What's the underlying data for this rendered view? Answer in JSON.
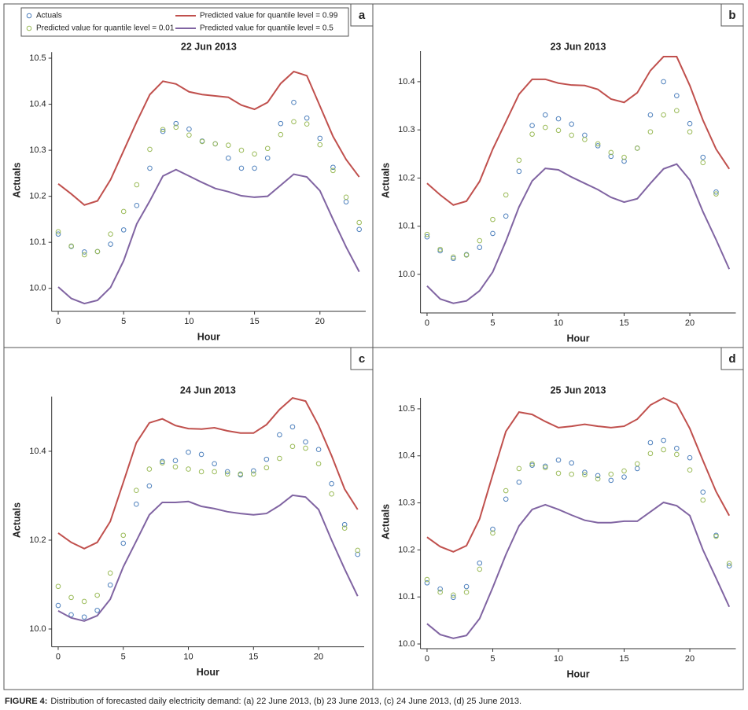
{
  "chart_data": [
    {
      "type": "line",
      "title": "22 Jun 2013",
      "panel_label": "a",
      "xlabel": "Hour",
      "ylabel": "Actuals",
      "legend": "top",
      "x": [
        0,
        1,
        2,
        3,
        4,
        5,
        6,
        7,
        8,
        9,
        10,
        11,
        12,
        13,
        14,
        15,
        16,
        17,
        18,
        19,
        20,
        21,
        22,
        23
      ],
      "xlim": [
        -0.5,
        23.5
      ],
      "xticks": [
        0,
        5,
        10,
        15,
        20
      ],
      "ylim": [
        9.95,
        10.52
      ],
      "yticks": [
        {
          "value": 10,
          "label": "10.0"
        },
        10.1,
        10.2,
        10.3,
        10.4,
        10.5
      ],
      "series": [
        {
          "name": "Actuals",
          "type": "scatter",
          "color": "#4f81bd",
          "values": [
            10.118,
            10.091,
            10.079,
            10.08,
            10.096,
            10.127,
            10.18,
            10.261,
            10.341,
            10.358,
            10.346,
            10.32,
            10.314,
            10.283,
            10.261,
            10.261,
            10.283,
            10.358,
            10.404,
            10.37,
            10.326,
            10.263,
            10.188,
            10.128
          ]
        },
        {
          "name": "Predicted value for quantile level = 0.01",
          "type": "scatter",
          "color": "#9bbb59",
          "values": [
            10.123,
            10.092,
            10.073,
            10.08,
            10.118,
            10.167,
            10.225,
            10.302,
            10.345,
            10.35,
            10.333,
            10.319,
            10.314,
            10.311,
            10.3,
            10.292,
            10.304,
            10.334,
            10.362,
            10.357,
            10.312,
            10.256,
            10.198,
            10.143
          ]
        },
        {
          "name": "Predicted value for quantile level = 0.99",
          "type": "line",
          "color": "#c0504d",
          "values": [
            10.227,
            10.205,
            10.181,
            10.19,
            10.236,
            10.299,
            10.362,
            10.421,
            10.45,
            10.444,
            10.427,
            10.421,
            10.418,
            10.415,
            10.398,
            10.389,
            10.404,
            10.445,
            10.471,
            10.462,
            10.396,
            10.33,
            10.28,
            10.242
          ]
        },
        {
          "name": "Predicted value for quantile level = 0.5",
          "type": "line",
          "color": "#8064a2",
          "values": [
            10.003,
            9.978,
            9.967,
            9.974,
            10.002,
            10.06,
            10.14,
            10.19,
            10.244,
            10.258,
            10.244,
            10.23,
            10.217,
            10.21,
            10.201,
            10.198,
            10.2,
            10.224,
            10.248,
            10.242,
            10.212,
            10.15,
            10.09,
            10.036
          ]
        }
      ]
    },
    {
      "type": "line",
      "title": "23 Jun 2013",
      "panel_label": "b",
      "xlabel": "Hour",
      "ylabel": "Actuals",
      "x": [
        0,
        1,
        2,
        3,
        4,
        5,
        6,
        7,
        8,
        9,
        10,
        11,
        12,
        13,
        14,
        15,
        16,
        17,
        18,
        19,
        20,
        21,
        22,
        23
      ],
      "xlim": [
        -0.5,
        23.5
      ],
      "xticks": [
        0,
        5,
        10,
        15,
        20
      ],
      "ylim": [
        9.92,
        10.47
      ],
      "yticks": [
        {
          "value": 10,
          "label": "10.0"
        },
        10.1,
        10.2,
        10.3,
        10.4
      ],
      "series": [
        {
          "type": "scatter",
          "color": "#4f81bd",
          "values": [
            10.078,
            10.049,
            10.033,
            10.041,
            10.056,
            10.085,
            10.121,
            10.214,
            10.309,
            10.331,
            10.323,
            10.312,
            10.289,
            10.267,
            10.245,
            10.235,
            10.262,
            10.331,
            10.4,
            10.371,
            10.313,
            10.243,
            10.171,
            null
          ]
        },
        {
          "type": "scatter",
          "color": "#9bbb59",
          "values": [
            10.083,
            10.052,
            10.036,
            10.04,
            10.07,
            10.114,
            10.165,
            10.237,
            10.291,
            10.305,
            10.299,
            10.289,
            10.28,
            10.271,
            10.253,
            10.243,
            10.262,
            10.296,
            10.331,
            10.34,
            10.296,
            10.232,
            10.167,
            null
          ]
        },
        {
          "type": "line",
          "color": "#c0504d",
          "values": [
            10.189,
            10.165,
            10.144,
            10.152,
            10.193,
            10.26,
            10.317,
            10.374,
            10.405,
            10.405,
            10.397,
            10.393,
            10.392,
            10.384,
            10.364,
            10.357,
            10.377,
            10.423,
            10.452,
            10.452,
            10.392,
            10.32,
            10.26,
            10.219
          ]
        },
        {
          "type": "line",
          "color": "#8064a2",
          "values": [
            9.976,
            9.949,
            9.94,
            9.945,
            9.966,
            10.005,
            10.069,
            10.14,
            10.194,
            10.22,
            10.217,
            10.202,
            10.189,
            10.176,
            10.16,
            10.15,
            10.157,
            10.189,
            10.219,
            10.229,
            10.196,
            10.13,
            10.072,
            10.011
          ]
        }
      ]
    },
    {
      "type": "line",
      "title": "24 Jun 2013",
      "panel_label": "c",
      "xlabel": "Hour",
      "ylabel": "Actuals",
      "x": [
        0,
        1,
        2,
        3,
        4,
        5,
        6,
        7,
        8,
        9,
        10,
        11,
        12,
        13,
        14,
        15,
        16,
        17,
        18,
        19,
        20,
        21,
        22,
        23
      ],
      "xlim": [
        -0.5,
        23.5
      ],
      "xticks": [
        0,
        5,
        10,
        15,
        20
      ],
      "ylim": [
        9.96,
        10.53
      ],
      "yticks": [
        {
          "value": 10,
          "label": "10.0"
        },
        10.2,
        10.4
      ],
      "series": [
        {
          "type": "scatter",
          "color": "#4f81bd",
          "values": [
            10.053,
            10.032,
            10.027,
            10.042,
            10.099,
            10.193,
            10.281,
            10.322,
            10.377,
            10.379,
            10.398,
            10.393,
            10.372,
            10.354,
            10.347,
            10.356,
            10.382,
            10.437,
            10.455,
            10.421,
            10.404,
            10.327,
            10.235,
            10.168
          ]
        },
        {
          "type": "scatter",
          "color": "#9bbb59",
          "values": [
            10.096,
            10.071,
            10.062,
            10.076,
            10.126,
            10.211,
            10.312,
            10.36,
            10.374,
            10.365,
            10.36,
            10.354,
            10.354,
            10.349,
            10.349,
            10.349,
            10.363,
            10.384,
            10.411,
            10.407,
            10.372,
            10.304,
            10.227,
            10.177
          ]
        },
        {
          "type": "line",
          "color": "#c0504d",
          "values": [
            10.216,
            10.195,
            10.181,
            10.195,
            10.242,
            10.33,
            10.419,
            10.464,
            10.473,
            10.458,
            10.451,
            10.45,
            10.453,
            10.446,
            10.441,
            10.441,
            10.46,
            10.494,
            10.52,
            10.513,
            10.458,
            10.39,
            10.315,
            10.269
          ]
        },
        {
          "type": "line",
          "color": "#8064a2",
          "values": [
            10.041,
            10.025,
            10.018,
            10.03,
            10.067,
            10.14,
            10.198,
            10.257,
            10.285,
            10.285,
            10.287,
            10.276,
            10.271,
            10.264,
            10.26,
            10.257,
            10.26,
            10.278,
            10.301,
            10.297,
            10.269,
            10.2,
            10.135,
            10.074
          ]
        }
      ]
    },
    {
      "type": "line",
      "title": "25 Jun 2013",
      "panel_label": "d",
      "xlabel": "Hour",
      "ylabel": "Actuals",
      "x": [
        0,
        1,
        2,
        3,
        4,
        5,
        6,
        7,
        8,
        9,
        10,
        11,
        12,
        13,
        14,
        15,
        16,
        17,
        18,
        19,
        20,
        21,
        22,
        23
      ],
      "xlim": [
        -0.5,
        23.5
      ],
      "xticks": [
        0,
        5,
        10,
        15,
        20
      ],
      "ylim": [
        9.99,
        10.53
      ],
      "yticks": [
        {
          "value": 10,
          "label": "10.0"
        },
        10.1,
        10.2,
        10.3,
        10.4,
        10.5
      ],
      "series": [
        {
          "type": "scatter",
          "color": "#4f81bd",
          "values": [
            10.13,
            10.117,
            10.099,
            10.122,
            10.172,
            10.244,
            10.308,
            10.344,
            10.38,
            10.378,
            10.391,
            10.385,
            10.365,
            10.358,
            10.348,
            10.355,
            10.373,
            10.428,
            10.433,
            10.416,
            10.396,
            10.323,
            10.231,
            10.166
          ]
        },
        {
          "type": "scatter",
          "color": "#9bbb59",
          "values": [
            10.137,
            10.11,
            10.104,
            10.11,
            10.159,
            10.236,
            10.326,
            10.373,
            10.383,
            10.375,
            10.363,
            10.361,
            10.36,
            10.351,
            10.361,
            10.368,
            10.383,
            10.405,
            10.413,
            10.403,
            10.37,
            10.306,
            10.229,
            10.171
          ]
        },
        {
          "type": "line",
          "color": "#c0504d",
          "values": [
            10.227,
            10.207,
            10.196,
            10.209,
            10.266,
            10.36,
            10.452,
            10.493,
            10.488,
            10.473,
            10.46,
            10.463,
            10.467,
            10.463,
            10.46,
            10.463,
            10.478,
            10.508,
            10.523,
            10.51,
            10.458,
            10.39,
            10.324,
            10.273
          ]
        },
        {
          "type": "line",
          "color": "#8064a2",
          "values": [
            10.043,
            10.02,
            10.012,
            10.018,
            10.054,
            10.12,
            10.19,
            10.251,
            10.286,
            10.296,
            10.286,
            10.274,
            10.263,
            10.258,
            10.258,
            10.261,
            10.261,
            10.281,
            10.301,
            10.294,
            10.273,
            10.2,
            10.14,
            10.079
          ]
        }
      ]
    }
  ],
  "caption": {
    "label": "FIGURE 4:",
    "text": "Distribution of forecasted daily electricity demand: (a) 22 June 2013, (b) 23 June 2013, (c) 24 June 2013, (d) 25 June 2013."
  }
}
